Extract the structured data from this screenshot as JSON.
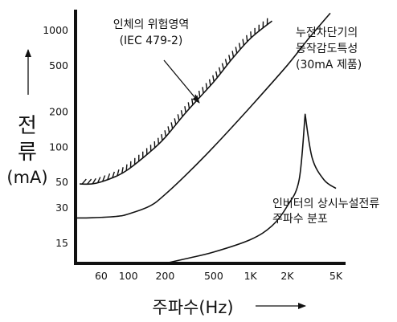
{
  "chart_data": {
    "type": "line",
    "title": "",
    "xlabel": "주파수(Hz)",
    "ylabel_lines": [
      "전",
      "류",
      "(mA)"
    ],
    "x_scale": "log",
    "y_scale": "log",
    "xlim": [
      37,
      6000
    ],
    "ylim": [
      10,
      1500
    ],
    "x_ticks": [
      {
        "value": 60,
        "label": "60"
      },
      {
        "value": 100,
        "label": "100"
      },
      {
        "value": 200,
        "label": "200"
      },
      {
        "value": 500,
        "label": "500"
      },
      {
        "value": 1000,
        "label": "1K"
      },
      {
        "value": 2000,
        "label": "2K"
      },
      {
        "value": 5000,
        "label": "5K"
      }
    ],
    "y_ticks": [
      {
        "value": 15,
        "label": "15"
      },
      {
        "value": 30,
        "label": "30"
      },
      {
        "value": 50,
        "label": "50"
      },
      {
        "value": 100,
        "label": "100"
      },
      {
        "value": 200,
        "label": "200"
      },
      {
        "value": 500,
        "label": "500"
      },
      {
        "value": 1000,
        "label": "1000"
      }
    ],
    "grid": false,
    "series": [
      {
        "name": "인체의 위험영역 (IEC 479-2)",
        "hatched": true,
        "x": [
          40,
          50,
          60,
          80,
          100,
          150,
          200,
          300,
          500,
          700,
          1000,
          1500
        ],
        "y": [
          48,
          48,
          50,
          56,
          64,
          90,
          120,
          200,
          360,
          560,
          850,
          1200
        ]
      },
      {
        "name": "누전차단기의 동작감도특성 (30mA 제품)",
        "hatched": false,
        "x": [
          37,
          50,
          80,
          100,
          150,
          200,
          300,
          500,
          1000,
          2000,
          3000,
          4500
        ],
        "y": [
          24.5,
          24.6,
          25.3,
          26.5,
          31,
          39,
          58,
          100,
          220,
          500,
          850,
          1400
        ]
      },
      {
        "name": "인버터의 상시누설전류 주파수 분포",
        "hatched": false,
        "x": [
          200,
          300,
          500,
          1000,
          1500,
          2000,
          2500,
          2800,
          3200,
          4000,
          5000
        ],
        "y": [
          10,
          11,
          12.5,
          16,
          21,
          31,
          52,
          190,
          80,
          52,
          44
        ]
      }
    ],
    "annotations": [
      {
        "lines": [
          "인체의 위험영역",
          "(IEC 479-2)"
        ]
      },
      {
        "lines": [
          "누전차단기의",
          "동작감도특성",
          "(30mA 제품)"
        ]
      },
      {
        "lines": [
          "인버터의 상시누설전류",
          "주파수 분포"
        ]
      }
    ]
  }
}
